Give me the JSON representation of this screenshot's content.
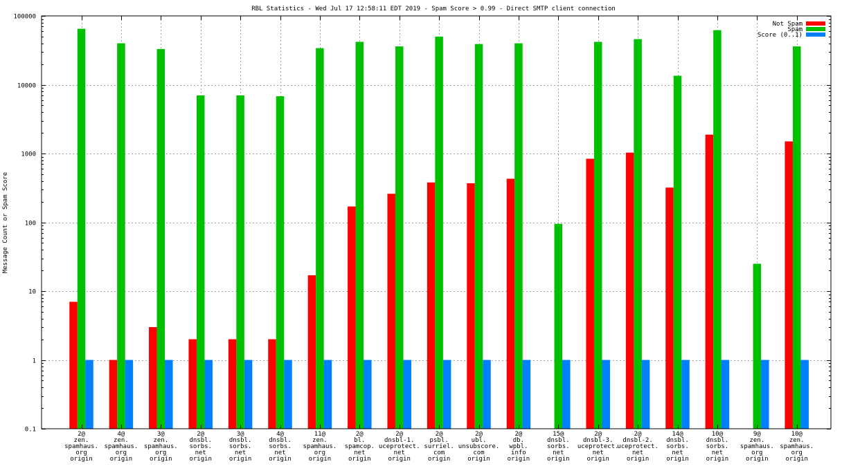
{
  "chart_data": {
    "type": "bar",
    "title": "RBL Statistics - Wed Jul 17 12:58:11 EDT 2019 - Spam Score > 0.99 - Direct SMTP client connection",
    "xlabel": "",
    "ylabel": "Message Count or Spam Score",
    "yscale": "log",
    "ylim": [
      0.1,
      100000
    ],
    "yticks": [
      0.1,
      1,
      10,
      100,
      1000,
      10000,
      100000
    ],
    "ytick_labels": [
      "0.1",
      "1",
      "10",
      "100",
      "1000",
      "10000",
      "100000"
    ],
    "grid": true,
    "legend_position": "top-right",
    "categories": [
      [
        "2@",
        "zen.",
        "spamhaus.",
        "org",
        "origin"
      ],
      [
        "4@",
        "zen.",
        "spamhaus.",
        "org",
        "origin"
      ],
      [
        "3@",
        "zen.",
        "spamhaus.",
        "org",
        "origin"
      ],
      [
        "2@",
        "dnsbl.",
        "sorbs.",
        "net",
        "origin"
      ],
      [
        "3@",
        "dnsbl.",
        "sorbs.",
        "net",
        "origin"
      ],
      [
        "4@",
        "dnsbl.",
        "sorbs.",
        "net",
        "origin"
      ],
      [
        "11@",
        "zen.",
        "spamhaus.",
        "org",
        "origin"
      ],
      [
        "2@",
        "bl.",
        "spamcop.",
        "net",
        "origin"
      ],
      [
        "2@",
        "dnsbl-1.",
        "uceprotect.",
        "net",
        "origin"
      ],
      [
        "2@",
        "psbl.",
        "surriel.",
        "com",
        "origin"
      ],
      [
        "2@",
        "ubl.",
        "unsubscore.",
        "com",
        "origin"
      ],
      [
        "2@",
        "db.",
        "wpbl.",
        "info",
        "origin"
      ],
      [
        "15@",
        "dnsbl.",
        "sorbs.",
        "net",
        "origin"
      ],
      [
        "2@",
        "dnsbl-3.",
        "uceprotect.",
        "net",
        "origin"
      ],
      [
        "2@",
        "dnsbl-2.",
        "uceprotect.",
        "net",
        "origin"
      ],
      [
        "14@",
        "dnsbl.",
        "sorbs.",
        "net",
        "origin"
      ],
      [
        "10@",
        "dnsbl.",
        "sorbs.",
        "net",
        "origin"
      ],
      [
        "9@",
        "zen.",
        "spamhaus.",
        "org",
        "origin"
      ],
      [
        "10@",
        "zen.",
        "spamhaus.",
        "org",
        "origin"
      ]
    ],
    "series": [
      {
        "name": "Not Spam",
        "color": "#ff0000",
        "values": [
          7,
          1,
          3,
          2,
          2,
          2,
          17,
          170,
          260,
          380,
          370,
          430,
          null,
          840,
          1030,
          320,
          1880,
          null,
          1500
        ]
      },
      {
        "name": "Spam",
        "color": "#00c000",
        "values": [
          65000,
          40000,
          33000,
          7000,
          7000,
          6800,
          34000,
          42000,
          36000,
          50000,
          39000,
          40000,
          95,
          42000,
          46000,
          13500,
          62000,
          25,
          36000
        ]
      },
      {
        "name": "Score (0..1)",
        "color": "#0080ff",
        "values": [
          1,
          1,
          1,
          1,
          1,
          1,
          1,
          1,
          1,
          1,
          1,
          1,
          1,
          1,
          1,
          1,
          1,
          1,
          1
        ]
      }
    ]
  }
}
